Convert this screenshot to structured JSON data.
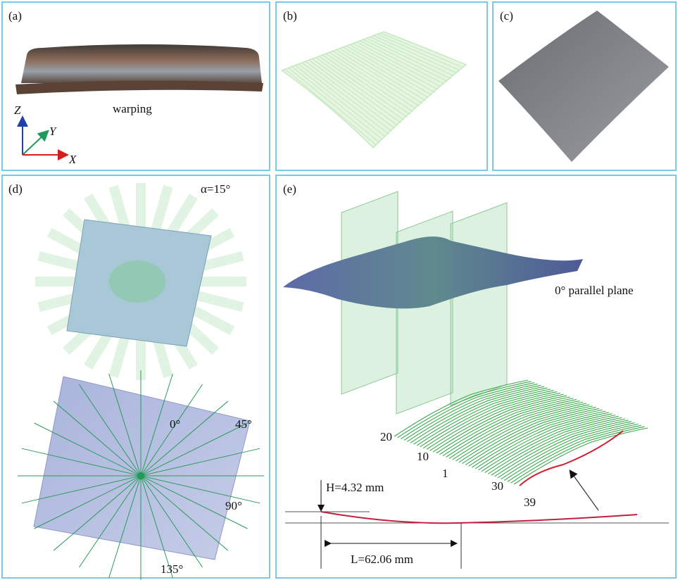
{
  "panels": {
    "a": {
      "label": "(a)",
      "caption": "warping",
      "axes": {
        "z": "Z",
        "y": "Y",
        "x": "X"
      }
    },
    "b": {
      "label": "(b)"
    },
    "c": {
      "label": "(c)"
    },
    "d": {
      "label": "(d)",
      "angle_step": "α=15°",
      "directions": [
        "0°",
        "45°",
        "90°",
        "135°"
      ]
    },
    "e": {
      "label": "(e)",
      "plane": "0° parallel plane",
      "line_numbers": [
        "20",
        "10",
        "1",
        "30",
        "39"
      ],
      "height": "H=4.32 mm",
      "length": "L=62.06 mm"
    }
  }
}
